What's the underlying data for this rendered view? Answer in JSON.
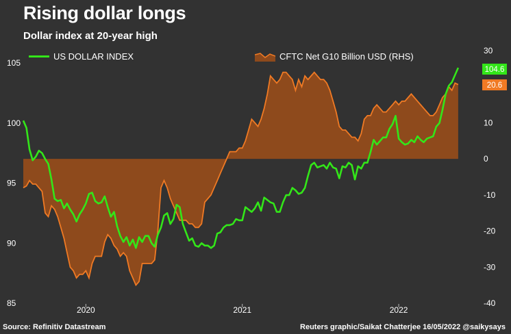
{
  "header": {
    "title": "Rising dollar longs",
    "subtitle": "Dollar index at 20-year high"
  },
  "footer": {
    "source": "Source: Refinitiv Datastream",
    "credit": "Reuters graphic/Saikat Chatterjee 16/05/2022 @saikysays"
  },
  "colors": {
    "background": "#323232",
    "dxy_line": "#33e619",
    "cftc_line": "#f07a24",
    "cftc_fill": "#8e4a1c"
  },
  "chart_data": {
    "type": "line+area",
    "title": "Rising dollar longs",
    "subtitle": "Dollar index at 20-year high",
    "x_ticks": [
      {
        "label": "2020",
        "t": 2020.0
      },
      {
        "label": "2021",
        "t": 2021.0
      },
      {
        "label": "2022",
        "t": 2022.0
      }
    ],
    "x_range": [
      2019.6,
      2022.42
    ],
    "left_axis": {
      "ticks": [
        85,
        90,
        95,
        100,
        105
      ],
      "range": [
        85,
        106.5
      ]
    },
    "right_axis": {
      "ticks": [
        -40,
        -30,
        -20,
        -10,
        0,
        10,
        20,
        30
      ],
      "range": [
        -40,
        30
      ],
      "baseline": 0
    },
    "series": [
      {
        "name": "US DOLLAR INDEX",
        "axis": "left",
        "end_label": "104.6",
        "points": [
          [
            2019.6,
            100.2
          ],
          [
            2019.62,
            99.6
          ],
          [
            2019.64,
            97.8
          ],
          [
            2019.66,
            96.9
          ],
          [
            2019.68,
            97.2
          ],
          [
            2019.7,
            97.7
          ],
          [
            2019.72,
            97.5
          ],
          [
            2019.74,
            97.0
          ],
          [
            2019.76,
            96.6
          ],
          [
            2019.78,
            95.3
          ],
          [
            2019.8,
            93.7
          ],
          [
            2019.82,
            93.5
          ],
          [
            2019.84,
            93.6
          ],
          [
            2019.86,
            92.9
          ],
          [
            2019.88,
            93.3
          ],
          [
            2019.9,
            92.8
          ],
          [
            2019.92,
            92.4
          ],
          [
            2019.94,
            91.8
          ],
          [
            2019.96,
            92.4
          ],
          [
            2019.98,
            92.8
          ],
          [
            2020.0,
            93.3
          ],
          [
            2020.02,
            94.1
          ],
          [
            2020.04,
            94.2
          ],
          [
            2020.06,
            93.5
          ],
          [
            2020.08,
            93.3
          ],
          [
            2020.1,
            93.4
          ],
          [
            2020.12,
            93.9
          ],
          [
            2020.14,
            93.0
          ],
          [
            2020.16,
            92.2
          ],
          [
            2020.18,
            92.6
          ],
          [
            2020.2,
            91.4
          ],
          [
            2020.22,
            90.6
          ],
          [
            2020.24,
            90.1
          ],
          [
            2020.26,
            90.5
          ],
          [
            2020.28,
            89.8
          ],
          [
            2020.3,
            90.3
          ],
          [
            2020.32,
            89.6
          ],
          [
            2020.34,
            90.5
          ],
          [
            2020.36,
            90.1
          ],
          [
            2020.38,
            90.6
          ],
          [
            2020.4,
            90.6
          ],
          [
            2020.42,
            90.0
          ],
          [
            2020.44,
            89.7
          ],
          [
            2020.46,
            90.7
          ],
          [
            2020.48,
            91.3
          ],
          [
            2020.5,
            92.3
          ],
          [
            2020.52,
            92.5
          ],
          [
            2020.54,
            91.6
          ],
          [
            2020.56,
            92.0
          ],
          [
            2020.58,
            93.2
          ],
          [
            2020.6,
            93.0
          ],
          [
            2020.62,
            91.6
          ],
          [
            2020.64,
            90.9
          ],
          [
            2020.66,
            90.2
          ],
          [
            2020.68,
            90.4
          ],
          [
            2020.7,
            89.8
          ],
          [
            2020.72,
            89.7
          ],
          [
            2020.74,
            90.0
          ],
          [
            2020.76,
            89.8
          ],
          [
            2020.78,
            89.8
          ],
          [
            2020.8,
            89.6
          ],
          [
            2020.82,
            89.8
          ],
          [
            2020.84,
            90.8
          ],
          [
            2020.86,
            90.9
          ],
          [
            2020.88,
            91.3
          ],
          [
            2020.9,
            91.5
          ],
          [
            2020.92,
            91.5
          ],
          [
            2020.94,
            91.6
          ],
          [
            2020.96,
            92.0
          ],
          [
            2020.98,
            91.9
          ],
          [
            2021.0,
            91.9
          ],
          [
            2021.02,
            93.0
          ],
          [
            2021.04,
            92.8
          ],
          [
            2021.06,
            92.6
          ],
          [
            2021.08,
            92.9
          ],
          [
            2021.1,
            93.4
          ],
          [
            2021.12,
            92.7
          ],
          [
            2021.14,
            93.8
          ],
          [
            2021.16,
            93.6
          ],
          [
            2021.18,
            93.4
          ],
          [
            2021.2,
            93.3
          ],
          [
            2021.22,
            92.6
          ],
          [
            2021.24,
            92.6
          ],
          [
            2021.26,
            93.4
          ],
          [
            2021.28,
            94.0
          ],
          [
            2021.3,
            94.0
          ],
          [
            2021.32,
            94.6
          ],
          [
            2021.34,
            94.4
          ],
          [
            2021.36,
            94.1
          ],
          [
            2021.38,
            94.2
          ],
          [
            2021.4,
            94.6
          ],
          [
            2021.42,
            95.6
          ],
          [
            2021.44,
            96.5
          ],
          [
            2021.46,
            96.7
          ],
          [
            2021.48,
            96.3
          ],
          [
            2021.5,
            96.4
          ],
          [
            2021.52,
            96.5
          ],
          [
            2021.54,
            96.2
          ],
          [
            2021.56,
            96.7
          ],
          [
            2021.58,
            96.3
          ],
          [
            2021.6,
            96.2
          ],
          [
            2021.62,
            95.4
          ],
          [
            2021.64,
            96.4
          ],
          [
            2021.66,
            96.3
          ],
          [
            2021.68,
            96.7
          ],
          [
            2021.7,
            96.5
          ],
          [
            2021.72,
            95.3
          ],
          [
            2021.74,
            96.4
          ],
          [
            2021.76,
            96.2
          ],
          [
            2021.78,
            96.7
          ],
          [
            2021.8,
            96.7
          ],
          [
            2021.82,
            97.6
          ],
          [
            2021.84,
            98.6
          ],
          [
            2021.86,
            98.2
          ],
          [
            2021.88,
            98.5
          ],
          [
            2021.9,
            98.8
          ],
          [
            2021.92,
            98.8
          ],
          [
            2021.94,
            99.5
          ],
          [
            2021.96,
            99.9
          ],
          [
            2021.98,
            100.6
          ],
          [
            2022.0,
            98.7
          ],
          [
            2022.02,
            98.4
          ],
          [
            2022.04,
            98.2
          ],
          [
            2022.06,
            98.3
          ],
          [
            2022.08,
            98.6
          ],
          [
            2022.1,
            98.4
          ],
          [
            2022.12,
            98.9
          ],
          [
            2022.14,
            98.6
          ],
          [
            2022.16,
            98.4
          ],
          [
            2022.18,
            98.7
          ],
          [
            2022.2,
            98.8
          ],
          [
            2022.22,
            98.9
          ],
          [
            2022.24,
            99.7
          ],
          [
            2022.26,
            100.0
          ],
          [
            2022.28,
            101.1
          ],
          [
            2022.3,
            102.4
          ],
          [
            2022.32,
            103.1
          ],
          [
            2022.34,
            103.4
          ],
          [
            2022.36,
            104.0
          ],
          [
            2022.38,
            104.6
          ]
        ]
      },
      {
        "name": "CFTC Net G10 Billion USD (RHS)",
        "axis": "right",
        "end_label": "20.6",
        "points": [
          [
            2019.6,
            -8
          ],
          [
            2019.62,
            -7.5
          ],
          [
            2019.64,
            -6
          ],
          [
            2019.66,
            -7
          ],
          [
            2019.68,
            -7
          ],
          [
            2019.7,
            -8
          ],
          [
            2019.72,
            -9
          ],
          [
            2019.74,
            -15
          ],
          [
            2019.76,
            -16
          ],
          [
            2019.78,
            -13
          ],
          [
            2019.8,
            -14
          ],
          [
            2019.82,
            -16
          ],
          [
            2019.84,
            -19
          ],
          [
            2019.86,
            -22
          ],
          [
            2019.88,
            -26
          ],
          [
            2019.9,
            -30
          ],
          [
            2019.92,
            -31
          ],
          [
            2019.94,
            -33
          ],
          [
            2019.96,
            -32
          ],
          [
            2019.98,
            -32
          ],
          [
            2020.0,
            -31
          ],
          [
            2020.02,
            -33
          ],
          [
            2020.04,
            -29
          ],
          [
            2020.06,
            -27
          ],
          [
            2020.08,
            -27
          ],
          [
            2020.1,
            -27
          ],
          [
            2020.12,
            -23
          ],
          [
            2020.14,
            -21
          ],
          [
            2020.16,
            -22
          ],
          [
            2020.18,
            -24
          ],
          [
            2020.2,
            -25
          ],
          [
            2020.22,
            -27
          ],
          [
            2020.24,
            -26
          ],
          [
            2020.26,
            -27
          ],
          [
            2020.28,
            -31
          ],
          [
            2020.3,
            -33
          ],
          [
            2020.32,
            -35
          ],
          [
            2020.34,
            -34
          ],
          [
            2020.36,
            -29
          ],
          [
            2020.38,
            -29
          ],
          [
            2020.4,
            -29
          ],
          [
            2020.42,
            -29
          ],
          [
            2020.44,
            -28
          ],
          [
            2020.46,
            -20
          ],
          [
            2020.48,
            -8
          ],
          [
            2020.5,
            -6
          ],
          [
            2020.52,
            -8
          ],
          [
            2020.54,
            -11
          ],
          [
            2020.56,
            -13
          ],
          [
            2020.58,
            -15
          ],
          [
            2020.6,
            -17
          ],
          [
            2020.62,
            -17
          ],
          [
            2020.64,
            -17
          ],
          [
            2020.66,
            -18
          ],
          [
            2020.68,
            -18
          ],
          [
            2020.7,
            -19
          ],
          [
            2020.72,
            -19
          ],
          [
            2020.74,
            -18
          ],
          [
            2020.76,
            -12
          ],
          [
            2020.78,
            -11
          ],
          [
            2020.8,
            -10
          ],
          [
            2020.82,
            -8
          ],
          [
            2020.84,
            -6
          ],
          [
            2020.86,
            -4
          ],
          [
            2020.88,
            -2
          ],
          [
            2020.9,
            0
          ],
          [
            2020.92,
            2
          ],
          [
            2020.94,
            2
          ],
          [
            2020.96,
            2
          ],
          [
            2020.98,
            3
          ],
          [
            2021.0,
            3
          ],
          [
            2021.02,
            5
          ],
          [
            2021.04,
            8
          ],
          [
            2021.06,
            11
          ],
          [
            2021.08,
            10
          ],
          [
            2021.1,
            9
          ],
          [
            2021.12,
            11
          ],
          [
            2021.14,
            14
          ],
          [
            2021.16,
            18
          ],
          [
            2021.18,
            23
          ],
          [
            2021.2,
            22
          ],
          [
            2021.22,
            21
          ],
          [
            2021.24,
            22
          ],
          [
            2021.26,
            24
          ],
          [
            2021.28,
            24
          ],
          [
            2021.3,
            23
          ],
          [
            2021.32,
            22
          ],
          [
            2021.34,
            19
          ],
          [
            2021.36,
            22
          ],
          [
            2021.38,
            20
          ],
          [
            2021.4,
            23
          ],
          [
            2021.42,
            22
          ],
          [
            2021.44,
            23
          ],
          [
            2021.46,
            24
          ],
          [
            2021.48,
            23
          ],
          [
            2021.5,
            22
          ],
          [
            2021.52,
            22
          ],
          [
            2021.54,
            21
          ],
          [
            2021.56,
            19
          ],
          [
            2021.58,
            16
          ],
          [
            2021.6,
            13
          ],
          [
            2021.62,
            9
          ],
          [
            2021.64,
            8
          ],
          [
            2021.66,
            8
          ],
          [
            2021.68,
            7
          ],
          [
            2021.7,
            6
          ],
          [
            2021.72,
            6
          ],
          [
            2021.74,
            5
          ],
          [
            2021.76,
            7
          ],
          [
            2021.78,
            11
          ],
          [
            2021.8,
            12
          ],
          [
            2021.82,
            12
          ],
          [
            2021.84,
            14
          ],
          [
            2021.86,
            15
          ],
          [
            2021.88,
            14
          ],
          [
            2021.9,
            13
          ],
          [
            2021.92,
            13
          ],
          [
            2021.94,
            14
          ],
          [
            2021.96,
            15
          ],
          [
            2021.98,
            16
          ],
          [
            2022.0,
            15
          ],
          [
            2022.02,
            16
          ],
          [
            2022.04,
            16
          ],
          [
            2022.06,
            17
          ],
          [
            2022.08,
            18
          ],
          [
            2022.1,
            17
          ],
          [
            2022.12,
            16
          ],
          [
            2022.14,
            15
          ],
          [
            2022.16,
            14
          ],
          [
            2022.18,
            13
          ],
          [
            2022.2,
            12
          ],
          [
            2022.22,
            12
          ],
          [
            2022.24,
            13
          ],
          [
            2022.26,
            15
          ],
          [
            2022.28,
            17
          ],
          [
            2022.3,
            18
          ],
          [
            2022.32,
            20
          ],
          [
            2022.34,
            19
          ],
          [
            2022.36,
            21
          ],
          [
            2022.38,
            20.6
          ]
        ]
      }
    ]
  }
}
